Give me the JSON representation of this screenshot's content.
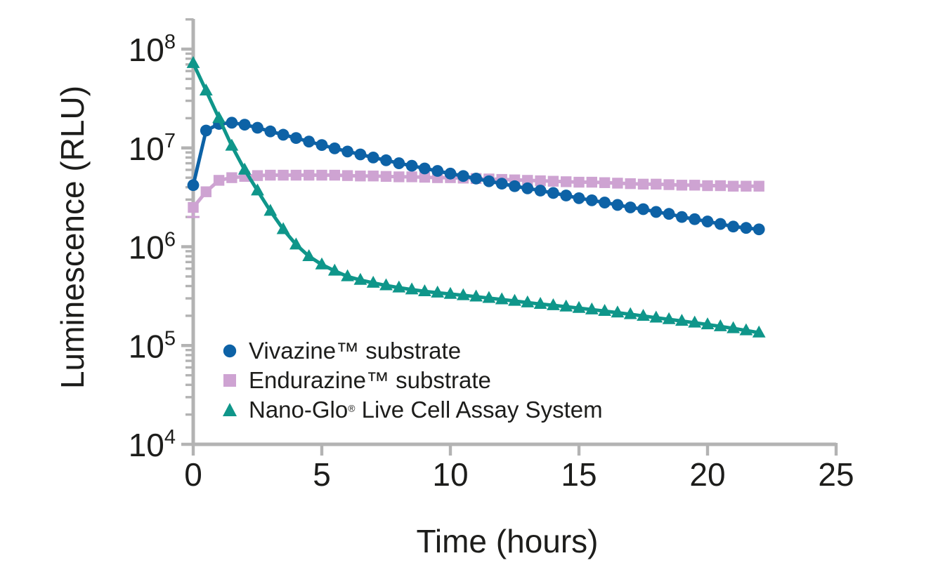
{
  "chart_data": {
    "type": "line",
    "xlabel": "Time (hours)",
    "ylabel": "Luminescence (RLU)",
    "x_axis": {
      "min": 0,
      "max": 25,
      "ticks": [
        0,
        5,
        10,
        15,
        20,
        25
      ]
    },
    "y_axis": {
      "scale": "log",
      "min": 10000,
      "max": 200000000,
      "major_tick_exponents": [
        8,
        7,
        6,
        5,
        4
      ],
      "minor_ticks": [
        200000000,
        90000000,
        80000000,
        70000000,
        60000000,
        50000000,
        40000000,
        30000000,
        20000000,
        9000000,
        8000000,
        7000000,
        6000000,
        5000000,
        4000000,
        3000000,
        2000000,
        900000,
        800000,
        700000,
        600000,
        500000,
        400000,
        300000,
        200000,
        90000,
        80000,
        70000,
        60000,
        50000,
        40000,
        30000,
        20000
      ]
    },
    "grid": false,
    "legend_position": "inside-lower-left",
    "axis_color": "#b3b3b3",
    "text_color": "#1d1d1b",
    "x": [
      0,
      0.5,
      1,
      1.5,
      2,
      2.5,
      3,
      3.5,
      4,
      4.5,
      5,
      5.5,
      6,
      6.5,
      7,
      7.5,
      8,
      8.5,
      9,
      9.5,
      10,
      10.5,
      11,
      11.5,
      12,
      12.5,
      13,
      13.5,
      14,
      14.5,
      15,
      15.5,
      16,
      16.5,
      17,
      17.5,
      18,
      18.5,
      19,
      19.5,
      20,
      20.5,
      21,
      21.5,
      22
    ],
    "series": [
      {
        "name": "Vivazine™ substrate",
        "marker": "circle",
        "color": "#0d62a6",
        "values": [
          4200000.0,
          15000000.0,
          17500000.0,
          18000000.0,
          17200000.0,
          16000000.0,
          14700000.0,
          13600000.0,
          12600000.0,
          11600000.0,
          10700000.0,
          9900000.0,
          9200000.0,
          8600000.0,
          8000000.0,
          7500000.0,
          7000000.0,
          6600000.0,
          6200000.0,
          5850000.0,
          5500000.0,
          5200000.0,
          4900000.0,
          4600000.0,
          4350000.0,
          4100000.0,
          3900000.0,
          3700000.0,
          3500000.0,
          3300000.0,
          3100000.0,
          2950000.0,
          2800000.0,
          2650000.0,
          2500000.0,
          2400000.0,
          2250000.0,
          2150000.0,
          2000000.0,
          1900000.0,
          1800000.0,
          1700000.0,
          1600000.0,
          1550000.0,
          1500000.0
        ]
      },
      {
        "name": "Endurazine™ substrate",
        "marker": "square",
        "color": "#cea3d2",
        "first_point_err_low": 2000000.0,
        "values": [
          2500000.0,
          3600000.0,
          4700000.0,
          5000000.0,
          5150000.0,
          5250000.0,
          5300000.0,
          5300000.0,
          5300000.0,
          5300000.0,
          5300000.0,
          5300000.0,
          5250000.0,
          5200000.0,
          5200000.0,
          5150000.0,
          5100000.0,
          5100000.0,
          5050000.0,
          5000000.0,
          5000000.0,
          4950000.0,
          4900000.0,
          4850000.0,
          4800000.0,
          4750000.0,
          4700000.0,
          4650000.0,
          4600000.0,
          4550000.0,
          4500000.0,
          4500000.0,
          4450000.0,
          4400000.0,
          4350000.0,
          4300000.0,
          4300000.0,
          4250000.0,
          4200000.0,
          4200000.0,
          4150000.0,
          4150000.0,
          4100000.0,
          4100000.0,
          4100000.0
        ]
      },
      {
        "name": "Nano-Glo® Live Cell Assay System",
        "marker": "triangle",
        "color": "#0f968a",
        "label_parts": {
          "pre": "Nano-Glo",
          "reg": "®",
          "post": " Live Cell Assay System"
        },
        "values": [
          72000000.0,
          38000000.0,
          20000000.0,
          10500000.0,
          6000000.0,
          3700000.0,
          2300000.0,
          1500000.0,
          1050000.0,
          800000.0,
          660000.0,
          570000.0,
          500000.0,
          460000.0,
          430000.0,
          405000.0,
          385000.0,
          368000.0,
          353000.0,
          342000.0,
          332000.0,
          322000.0,
          312000.0,
          302000.0,
          292000.0,
          282000.0,
          272000.0,
          263000.0,
          255000.0,
          247000.0,
          239000.0,
          231000.0,
          223000.0,
          215000.0,
          207000.0,
          199000.0,
          191000.0,
          184000.0,
          177000.0,
          170000.0,
          163000.0,
          156000.0,
          149000.0,
          142000.0,
          135000.0
        ]
      }
    ]
  }
}
